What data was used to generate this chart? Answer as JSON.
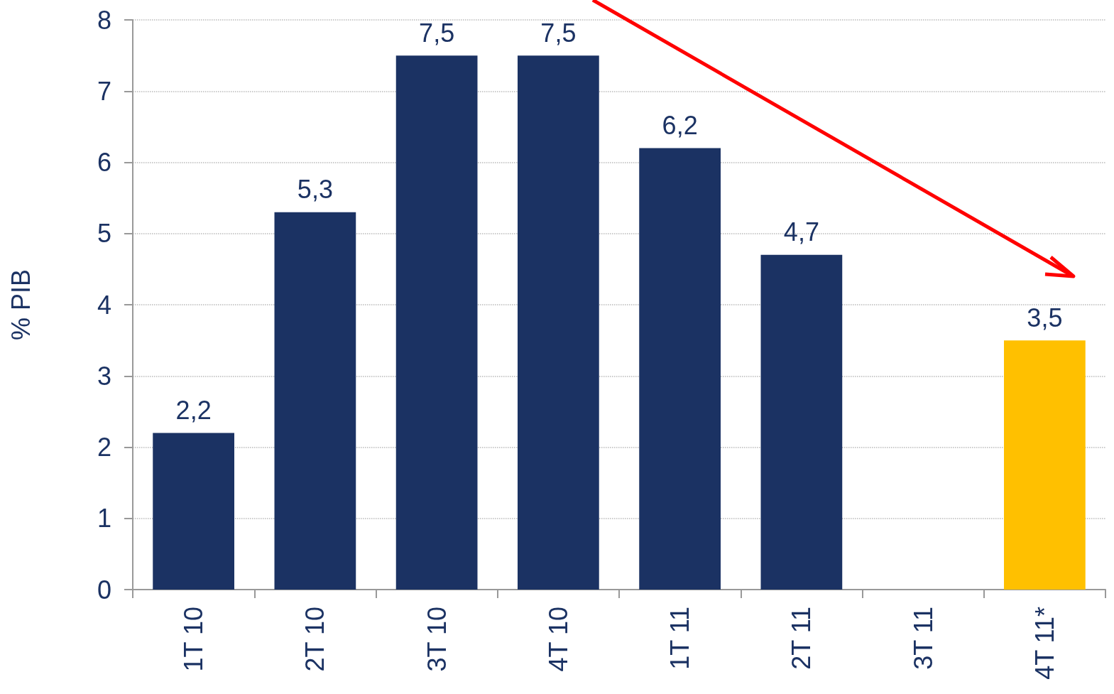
{
  "chart_data": {
    "type": "bar",
    "ylabel": "% PIB",
    "categories": [
      "1T 10",
      "2T 10",
      "3T 10",
      "4T 10",
      "1T 11",
      "2T 11",
      "3T 11",
      "4T 11*"
    ],
    "series": [
      {
        "values": [
          2.2,
          5.3,
          7.5,
          7.5,
          6.2,
          4.7,
          null,
          3.5
        ],
        "colors": [
          "#1b3263",
          "#1b3263",
          "#1b3263",
          "#1b3263",
          "#1b3263",
          "#1b3263",
          "#1b3263",
          "#ffc000"
        ],
        "value_labels": [
          "2,2",
          "5,3",
          "7,5",
          "7,5",
          "6,2",
          "4,7",
          null,
          "3,5"
        ]
      }
    ],
    "ylim": [
      0,
      8
    ],
    "yticks": [
      0,
      1,
      2,
      3,
      4,
      5,
      6,
      7,
      8
    ],
    "grid": "y"
  }
}
